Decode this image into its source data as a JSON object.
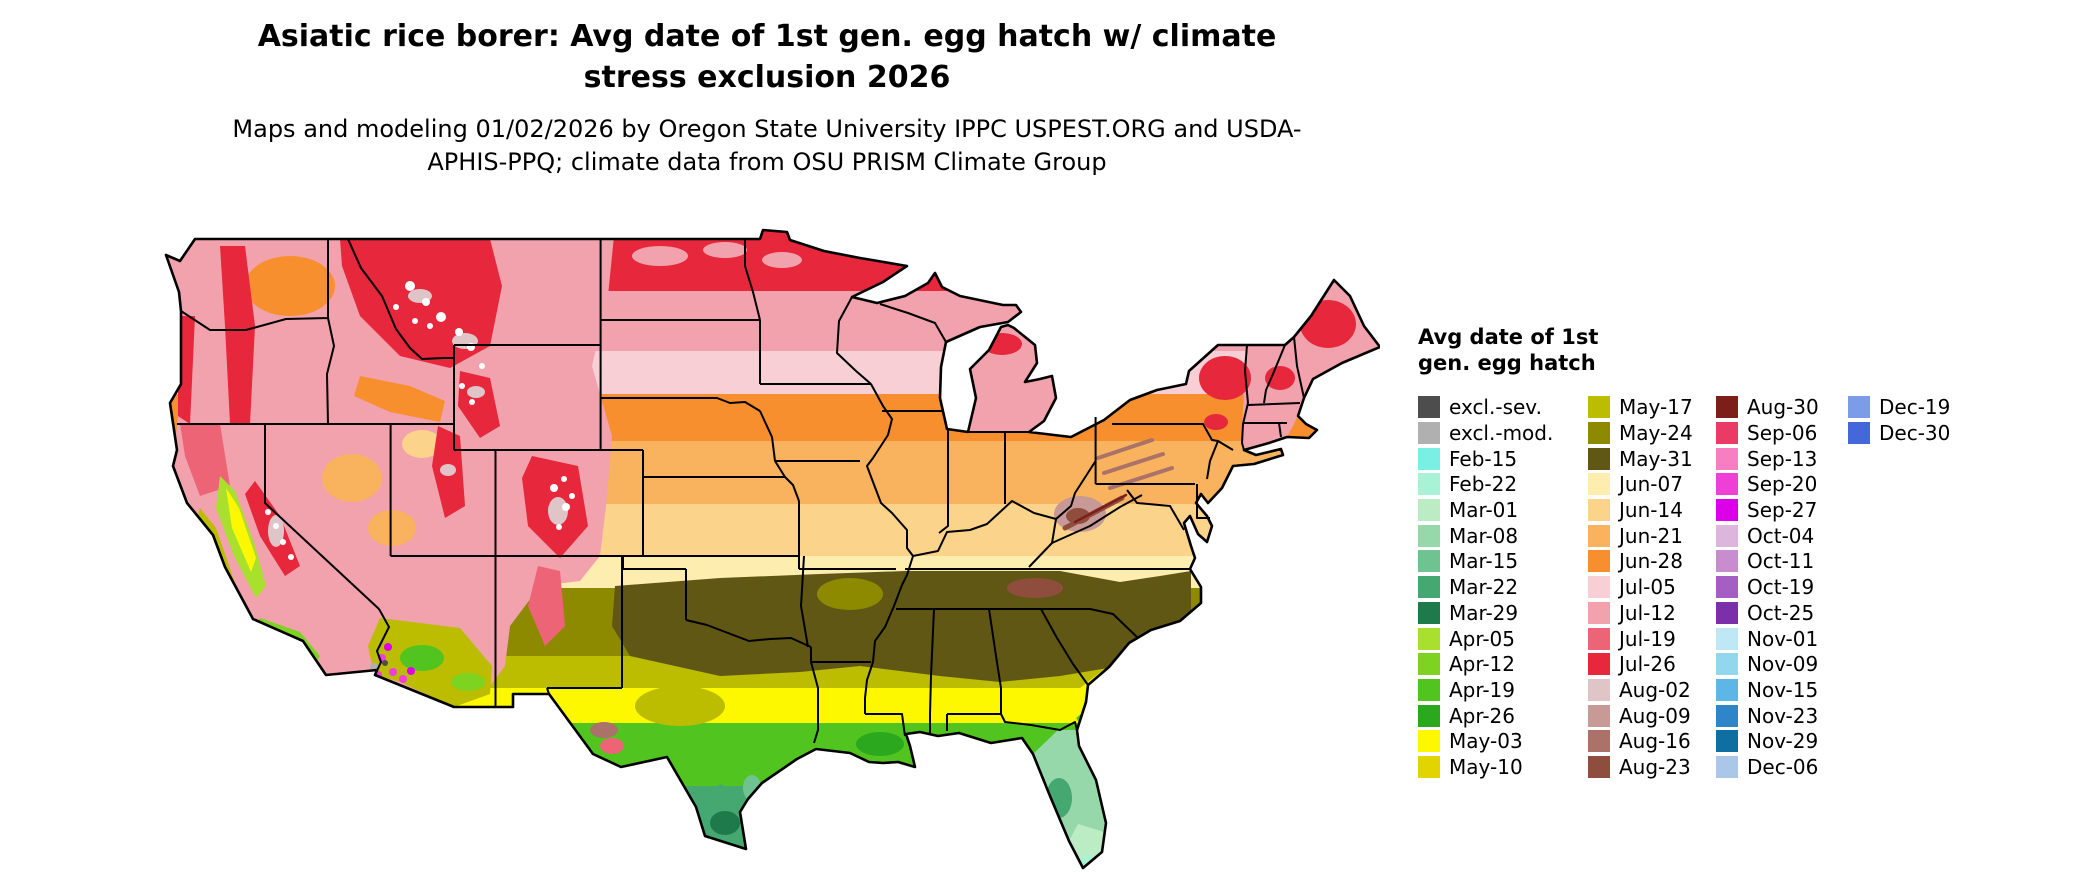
{
  "header": {
    "title": "Asiatic rice borer: Avg date of 1st gen. egg hatch w/ climate stress exclusion 2026",
    "subtitle": "Maps and modeling 01/02/2026 by Oregon State University IPPC USPEST.ORG and USDA-APHIS-PPQ; climate data from OSU PRISM Climate Group"
  },
  "legend": {
    "title": "Avg date of 1st gen. egg hatch",
    "columns": [
      [
        "excl.-sev.",
        "excl.-mod.",
        "Feb-15",
        "Feb-22",
        "Mar-01",
        "Mar-08",
        "Mar-15",
        "Mar-22",
        "Mar-29",
        "Apr-05",
        "Apr-12",
        "Apr-19",
        "Apr-26",
        "May-03",
        "May-10"
      ],
      [
        "May-17",
        "May-24",
        "May-31",
        "Jun-07",
        "Jun-14",
        "Jun-21",
        "Jun-28",
        "Jul-05",
        "Jul-12",
        "Jul-19",
        "Jul-26",
        "Aug-02",
        "Aug-09",
        "Aug-16",
        "Aug-23"
      ],
      [
        "Aug-30",
        "Sep-06",
        "Sep-13",
        "Sep-20",
        "Sep-27",
        "Oct-04",
        "Oct-11",
        "Oct-19",
        "Oct-25",
        "Nov-01",
        "Nov-09",
        "Nov-15",
        "Nov-23",
        "Nov-29",
        "Dec-06"
      ],
      [
        "Dec-19",
        "Dec-30"
      ]
    ]
  },
  "map": {
    "description": "Continental United States choropleth raster of average date of first generation egg hatch for Asiatic rice borer, 2026; white areas indicate no predicted hatch / excluded terrain",
    "palette": {
      "excl.-sev.": "#4d4d4d",
      "excl.-mod.": "#b0b0b0",
      "Feb-15": "#7af0e4",
      "Feb-22": "#a8f2d5",
      "Mar-01": "#bcecc3",
      "Mar-08": "#96d8a9",
      "Mar-15": "#6fc391",
      "Mar-22": "#45a871",
      "Mar-29": "#1e7a4a",
      "Apr-05": "#a8e02d",
      "Apr-12": "#7ed321",
      "Apr-19": "#52c41f",
      "Apr-26": "#2ca81e",
      "May-03": "#fdf800",
      "May-10": "#e3d400",
      "May-17": "#bcbc00",
      "May-24": "#8e8a00",
      "May-31": "#615715",
      "Jun-07": "#fdeeb0",
      "Jun-14": "#fbd38b",
      "Jun-21": "#f9b25e",
      "Jun-28": "#f78f2e",
      "Jul-05": "#f7cfd4",
      "Jul-12": "#f2a2ad",
      "Jul-19": "#ec6476",
      "Jul-26": "#e6273c",
      "Aug-02": "#dfc5c8",
      "Aug-09": "#c79a98",
      "Aug-16": "#aa7268",
      "Aug-23": "#8f4d3e",
      "Aug-30": "#7c1f1a",
      "Sep-06": "#ea3a66",
      "Sep-13": "#f77fc1",
      "Sep-20": "#ee3fd7",
      "Sep-27": "#dc00e8",
      "Oct-04": "#dcb6dd",
      "Oct-11": "#c88ccf",
      "Oct-19": "#a55ec2",
      "Oct-25": "#7b2fa8",
      "Nov-01": "#bfe7f5",
      "Nov-09": "#92d7ee",
      "Nov-15": "#5cb6e6",
      "Nov-23": "#2e86c9",
      "Nov-29": "#0e6fa0",
      "Dec-06": "#aac6e8",
      "Dec-19": "#7d9ce8",
      "Dec-30": "#4467d9",
      "white": "#ffffff"
    }
  }
}
